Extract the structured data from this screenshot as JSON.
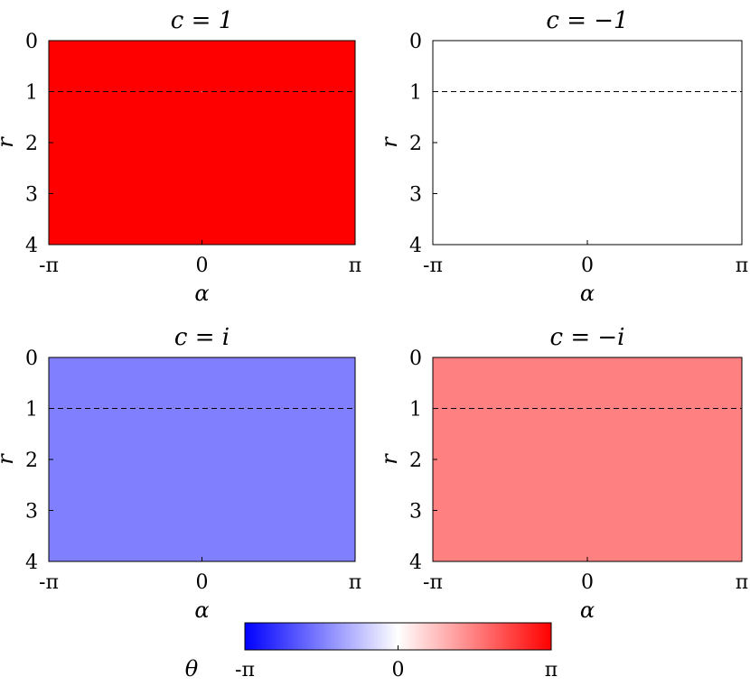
{
  "chart_data": [
    {
      "type": "heatmap",
      "title": "c = 1",
      "c": [
        1,
        0
      ],
      "xlabel": "α",
      "ylabel": "r",
      "xlim": [
        -3.14159,
        3.14159
      ],
      "ylim": [
        0,
        4
      ],
      "y_inverted": true,
      "xticks": [
        "-π",
        "0",
        "π"
      ],
      "yticks": [
        "0",
        "1",
        "2",
        "3",
        "4"
      ],
      "reference_line": {
        "r": 1,
        "style": "dashed"
      }
    },
    {
      "type": "heatmap",
      "title": "c = −1",
      "c": [
        -1,
        0
      ],
      "xlabel": "α",
      "ylabel": "r",
      "xlim": [
        -3.14159,
        3.14159
      ],
      "ylim": [
        0,
        4
      ],
      "y_inverted": true,
      "xticks": [
        "-π",
        "0",
        "π"
      ],
      "yticks": [
        "0",
        "1",
        "2",
        "3",
        "4"
      ],
      "reference_line": {
        "r": 1,
        "style": "dashed"
      }
    },
    {
      "type": "heatmap",
      "title": "c = i",
      "c": [
        0,
        1
      ],
      "xlabel": "α",
      "ylabel": "r",
      "xlim": [
        -3.14159,
        3.14159
      ],
      "ylim": [
        0,
        4
      ],
      "y_inverted": true,
      "xticks": [
        "-π",
        "0",
        "π"
      ],
      "yticks": [
        "0",
        "1",
        "2",
        "3",
        "4"
      ],
      "reference_line": {
        "r": 1,
        "style": "dashed"
      }
    },
    {
      "type": "heatmap",
      "title": "c = −i",
      "c": [
        0,
        -1
      ],
      "xlabel": "α",
      "ylabel": "r",
      "xlim": [
        -3.14159,
        3.14159
      ],
      "ylim": [
        0,
        4
      ],
      "y_inverted": true,
      "xticks": [
        "-π",
        "0",
        "π"
      ],
      "yticks": [
        "0",
        "1",
        "2",
        "3",
        "4"
      ],
      "reference_line": {
        "r": 1,
        "style": "dashed"
      }
    }
  ],
  "colorbar": {
    "label": "θ",
    "range": [
      -3.14159,
      3.14159
    ],
    "ticks": [
      "-π",
      "0",
      "π"
    ],
    "colors": {
      "low": "#0000ff",
      "mid": "#ffffff",
      "high": "#ff0000"
    }
  }
}
